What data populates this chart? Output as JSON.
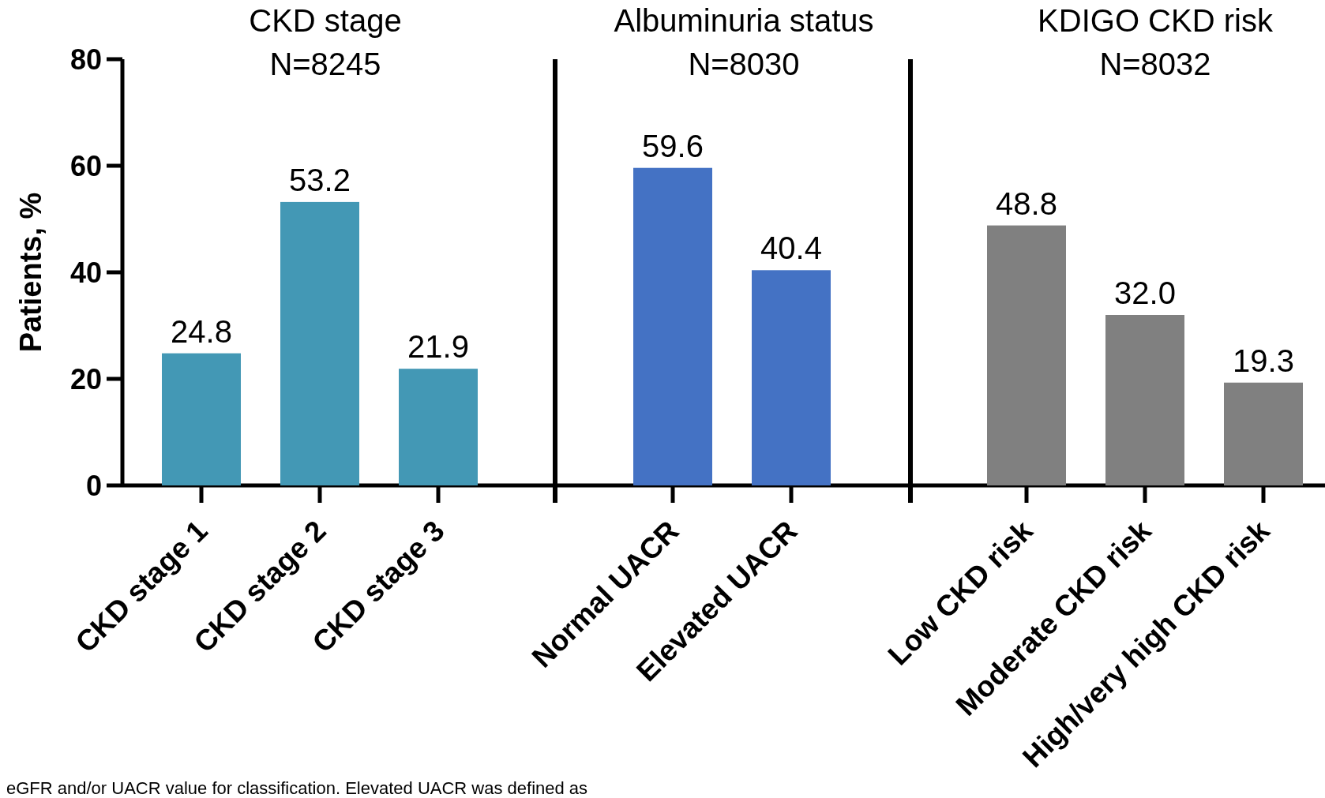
{
  "chart_data": [
    {
      "type": "bar",
      "title": "CKD stage",
      "subtitle": "N=8245",
      "ylabel": "Patients, %",
      "categories": [
        "CKD stage 1",
        "CKD stage 2",
        "CKD stage 3"
      ],
      "values": [
        24.8,
        53.2,
        21.9
      ],
      "value_labels": [
        "24.8",
        "53.2",
        "21.9"
      ],
      "color": "#4398b5",
      "ylim": [
        0,
        80
      ],
      "yticks": [
        0,
        20,
        40,
        60,
        80
      ],
      "annotations": [
        "eGFR and/or UACR value for classification. Elevated UACR was defined as"
      ]
    },
    {
      "type": "bar",
      "title": "Albuminuria status",
      "subtitle": "N=8030",
      "categories": [
        "Normal UACR",
        "Elevated UACR"
      ],
      "values": [
        59.6,
        40.4
      ],
      "value_labels": [
        "59.6",
        "40.4"
      ],
      "color": "#4472c4",
      "ylim": [
        0,
        80
      ],
      "tick_labels": "x"
    },
    {
      "type": "bar",
      "title": "KDIGO CKD risk",
      "subtitle": "N=8032",
      "categories": [
        "Low CKD risk",
        "Moderate CKD risk",
        "High/very high CKD risk"
      ],
      "values": [
        48.8,
        32.0,
        19.3
      ],
      "value_labels": [
        "48.8",
        "32.0",
        "19.3"
      ],
      "color": "#808080",
      "ylim": [
        0,
        80
      ],
      "tick_labels": "x"
    }
  ]
}
